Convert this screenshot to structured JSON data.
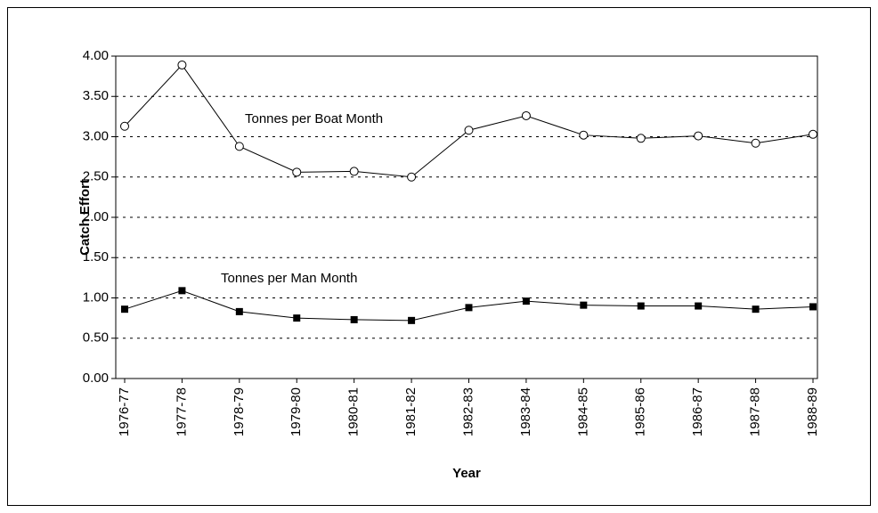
{
  "chart_data": {
    "type": "line",
    "y_label": "Catch Effort",
    "x_label": "Year",
    "categories": [
      "1976-77",
      "1977-78",
      "1978-79",
      "1979-80",
      "1980-81",
      "1981-82",
      "1982-83",
      "1983-84",
      "1984-85",
      "1985-86",
      "1986-87",
      "1987-88",
      "1988-89"
    ],
    "series": [
      {
        "name": "Tonnes per Boat Month",
        "color": "#000000",
        "marker": "circle",
        "values": [
          3.13,
          3.89,
          2.88,
          2.56,
          2.57,
          2.5,
          3.08,
          3.26,
          3.02,
          2.98,
          3.01,
          2.92,
          3.03
        ]
      },
      {
        "name": "Tonnes per Man Month",
        "color": "#000000",
        "marker": "square",
        "values": [
          0.86,
          1.09,
          0.83,
          0.75,
          0.73,
          0.72,
          0.88,
          0.96,
          0.91,
          0.9,
          0.9,
          0.86,
          0.89
        ]
      }
    ],
    "ylim": [
      0,
      4
    ],
    "yticks": [
      {
        "value": 0,
        "label": "0.00"
      },
      {
        "value": 0.5,
        "label": "0.50"
      },
      {
        "value": 1,
        "label": "1.00"
      },
      {
        "value": 1.5,
        "label": "1.50"
      },
      {
        "value": 2,
        "label": "2.00"
      },
      {
        "value": 2.5,
        "label": "2.50"
      },
      {
        "value": 3,
        "label": "3.00"
      },
      {
        "value": 3.5,
        "label": "3.50"
      },
      {
        "value": 4,
        "label": "4.00"
      }
    ],
    "grid": true
  }
}
